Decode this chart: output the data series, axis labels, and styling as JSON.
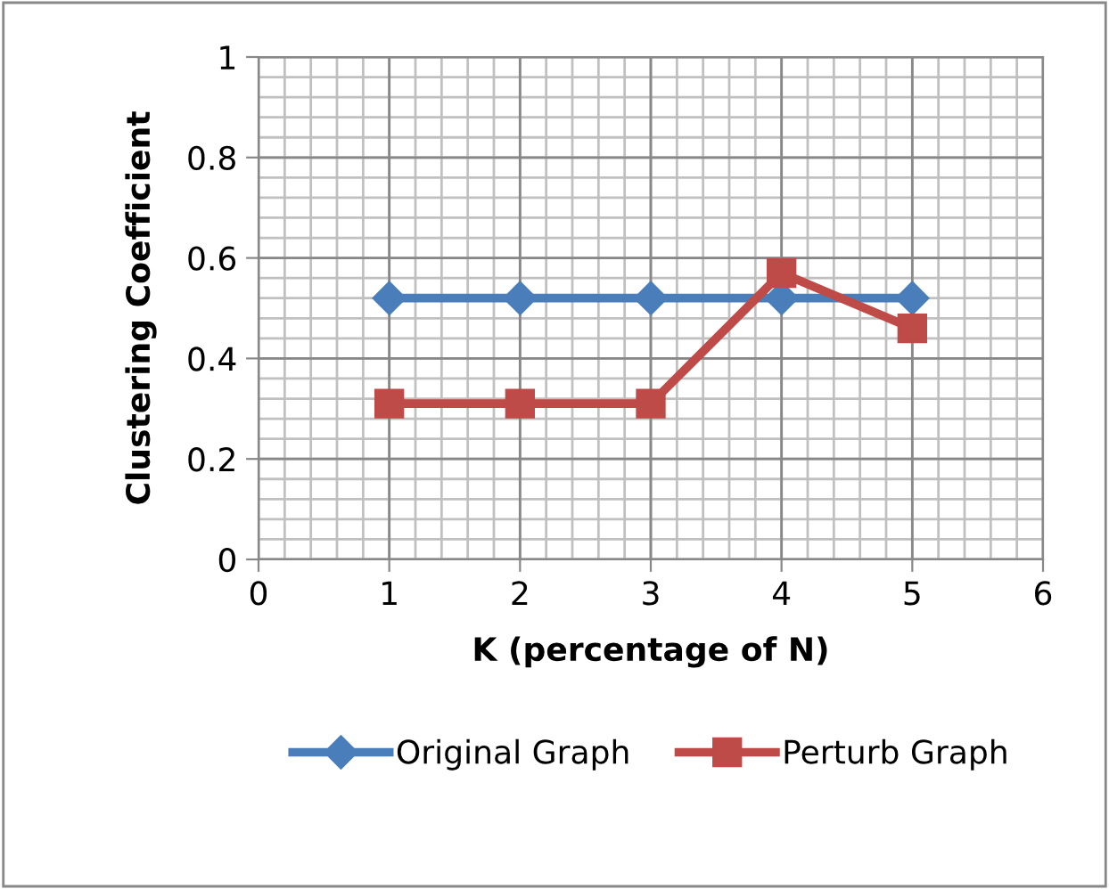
{
  "chart_data": {
    "type": "line",
    "xlabel": "K (percentage of N)",
    "ylabel": "Clustering Coefficient",
    "x": [
      1,
      2,
      3,
      4,
      5
    ],
    "xlim": [
      0,
      6
    ],
    "xticks": [
      0,
      1,
      2,
      3,
      4,
      5,
      6
    ],
    "ylim": [
      0,
      1
    ],
    "yticks": [
      0,
      0.2,
      0.4,
      0.6,
      0.8,
      1
    ],
    "grid": true,
    "legend": "bottom",
    "series": [
      {
        "name": "Original Graph",
        "color": "#4a7ebb",
        "values": [
          0.52,
          0.52,
          0.52,
          0.52,
          0.52
        ],
        "marker": "diamond"
      },
      {
        "name": "Perturb Graph",
        "color": "#be4b48",
        "values": [
          0.31,
          0.31,
          0.31,
          0.57,
          0.46
        ],
        "marker": "square"
      }
    ]
  }
}
